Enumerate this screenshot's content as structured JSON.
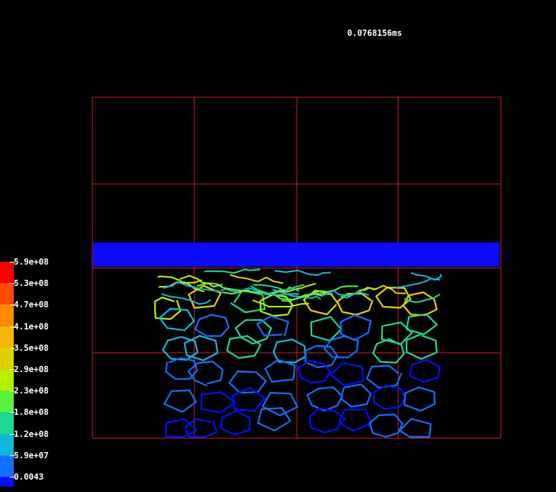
{
  "timestamp": "0.0768156ms",
  "legend": {
    "entries": [
      {
        "label": "5.9e+08",
        "color": "#ff0000"
      },
      {
        "label": "5.3e+08",
        "color": "#ff4a00"
      },
      {
        "label": "4.7e+08",
        "color": "#ff8a00"
      },
      {
        "label": "4.1e+08",
        "color": "#f5b800"
      },
      {
        "label": "3.5e+08",
        "color": "#e0d000"
      },
      {
        "label": "2.9e+08",
        "color": "#b4f000"
      },
      {
        "label": "2.3e+08",
        "color": "#5cf040"
      },
      {
        "label": "1.8e+08",
        "color": "#1cd890"
      },
      {
        "label": "1.2e+08",
        "color": "#10b8d8"
      },
      {
        "label": "5.9e+07",
        "color": "#1070ff"
      },
      {
        "label": "0.0043",
        "color": "#0010ff"
      }
    ]
  },
  "colors": {
    "background": "#000000",
    "grid": "#e0202c",
    "impactor": "#0a0aff"
  }
}
